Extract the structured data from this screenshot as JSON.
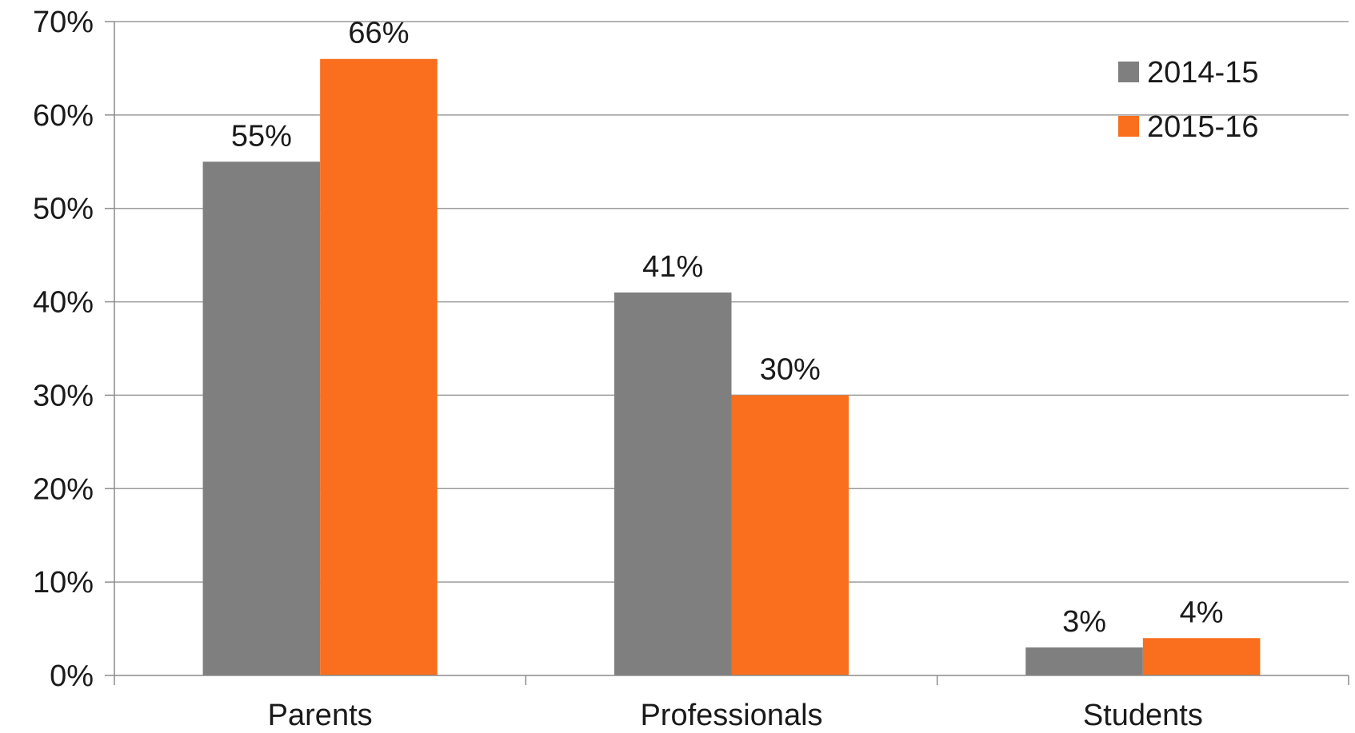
{
  "chart_data": {
    "type": "bar",
    "categories": [
      "Parents",
      "Professionals",
      "Students"
    ],
    "series": [
      {
        "name": "2014-15",
        "values": [
          55,
          41,
          3
        ],
        "labels": [
          "55%",
          "41%",
          "3%"
        ],
        "color": "#7f7f7f"
      },
      {
        "name": "2015-16",
        "values": [
          66,
          30,
          4
        ],
        "labels": [
          "66%",
          "30%",
          "4%"
        ],
        "color": "#f96f1e"
      }
    ],
    "ylim": [
      0,
      70
    ],
    "yticks": [
      "0%",
      "10%",
      "20%",
      "30%",
      "40%",
      "50%",
      "60%",
      "70%"
    ],
    "grid": true,
    "legend": "top-right",
    "gridline_color": "#9a9a9a",
    "axis_color": "#8c8c8c"
  }
}
